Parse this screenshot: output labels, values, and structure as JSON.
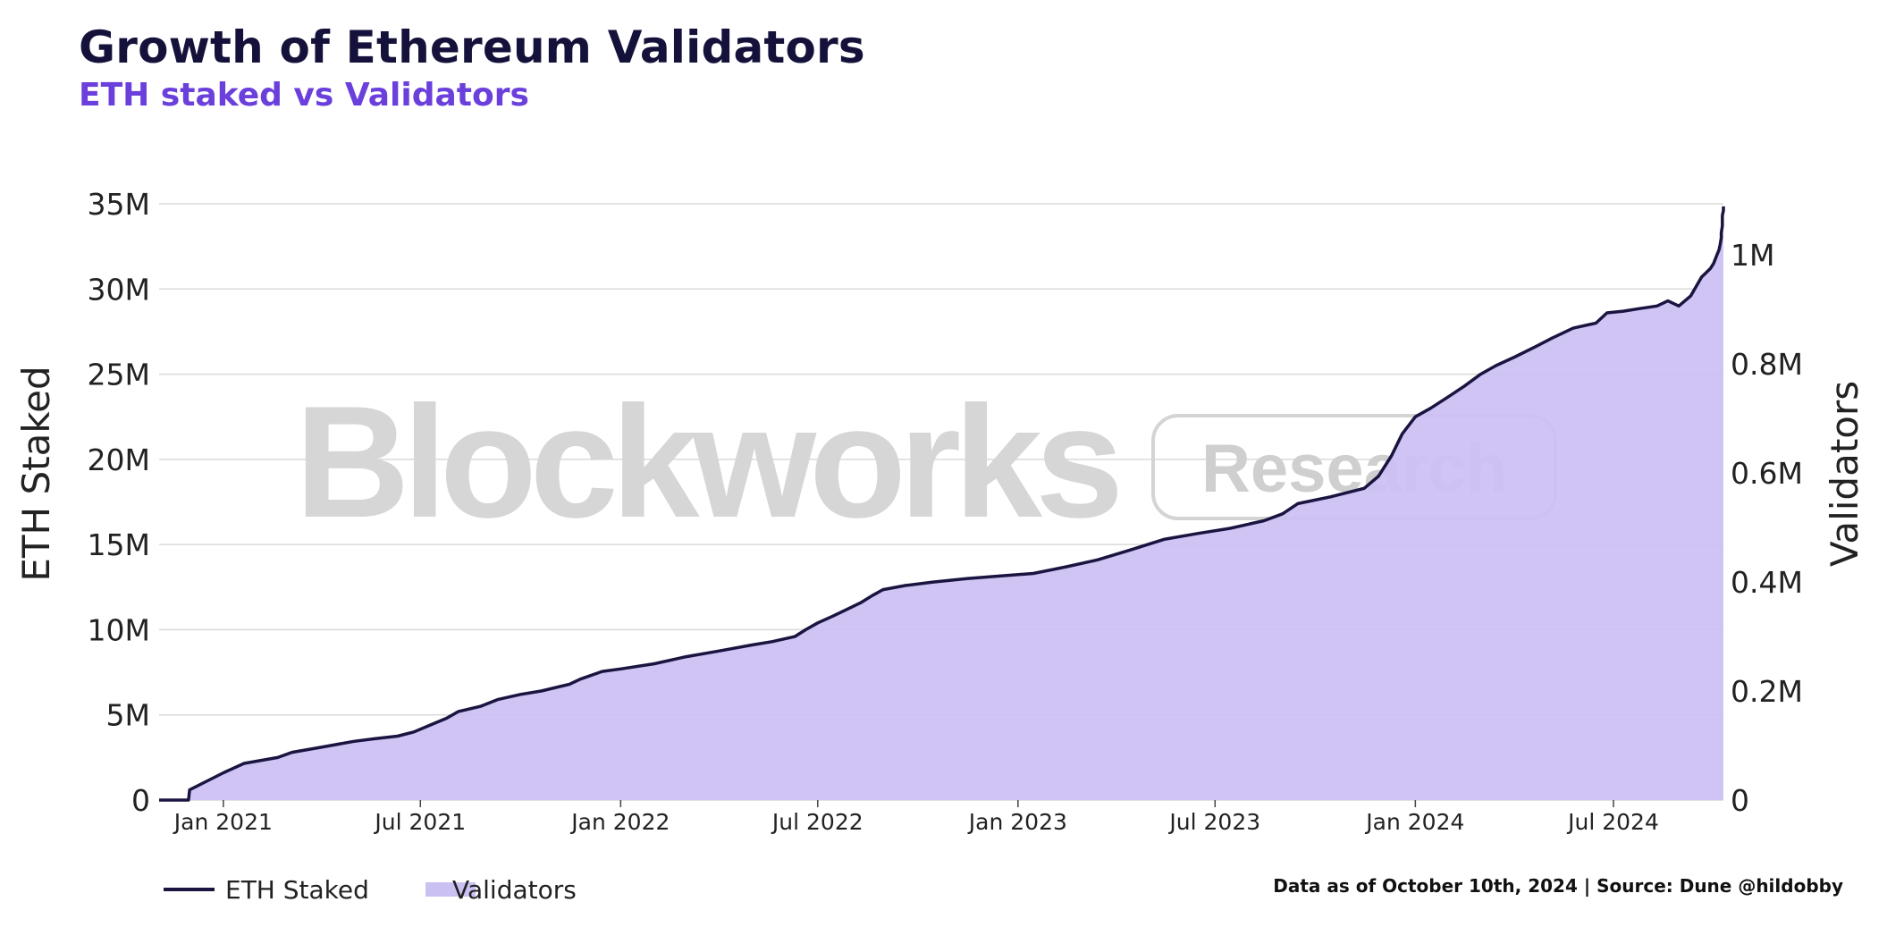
{
  "header": {
    "title": "Growth of Ethereum Validators",
    "subtitle": "ETH staked vs Validators"
  },
  "footer": {
    "source": "Data as of October 10th, 2024 | Source: Dune @hildobby"
  },
  "watermark": {
    "main": "Blockworks",
    "sub": "Research"
  },
  "colors": {
    "line": "#1a1540",
    "area": "#cbc0f2",
    "area_stroke": "#b9aaee",
    "grid": "#d9d9d9",
    "title": "#14123a",
    "subtitle": "#6a3fdc"
  },
  "chart_data": {
    "type": "area",
    "title": "Growth of Ethereum Validators",
    "subtitle": "ETH staked vs Validators",
    "y_left": {
      "label": "ETH Staked",
      "range": [
        0,
        35000000
      ],
      "ticks": [
        0,
        5000000,
        10000000,
        15000000,
        20000000,
        25000000,
        30000000,
        35000000
      ],
      "tick_labels": [
        "0",
        "5M",
        "10M",
        "15M",
        "20M",
        "25M",
        "30M",
        "35M"
      ]
    },
    "y_right": {
      "label": "Validators",
      "range": [
        0,
        1093750
      ],
      "ticks": [
        0,
        200000,
        400000,
        600000,
        800000,
        1000000
      ],
      "tick_labels": [
        "0",
        "0.2M",
        "0.4M",
        "0.6M",
        "0.8M",
        "1M"
      ]
    },
    "x_axis": {
      "range": [
        "2020-11-03",
        "2024-10-10"
      ],
      "ticks": [
        "2021-01-01",
        "2021-07-01",
        "2022-01-01",
        "2022-07-01",
        "2023-01-01",
        "2023-07-01",
        "2024-01-01",
        "2024-07-01"
      ],
      "tick_labels": [
        "Jan 2021",
        "Jul 2021",
        "Jan 2022",
        "Jul 2022",
        "Jan 2023",
        "Jul 2023",
        "Jan 2024",
        "Jul 2024"
      ]
    },
    "grid": true,
    "legend": "bottom-left",
    "series": [
      {
        "name": "ETH Staked",
        "axis": "left",
        "style": "line",
        "points": [
          [
            "2020-11-03",
            0
          ],
          [
            "2020-11-30",
            0
          ],
          [
            "2020-12-01",
            600000
          ],
          [
            "2020-12-15",
            1050000
          ],
          [
            "2021-01-01",
            1600000
          ],
          [
            "2021-01-20",
            2150000
          ],
          [
            "2021-02-20",
            2500000
          ],
          [
            "2021-03-05",
            2800000
          ],
          [
            "2021-04-01",
            3100000
          ],
          [
            "2021-05-01",
            3450000
          ],
          [
            "2021-05-20",
            3600000
          ],
          [
            "2021-06-10",
            3750000
          ],
          [
            "2021-06-25",
            4000000
          ],
          [
            "2021-07-10",
            4400000
          ],
          [
            "2021-07-25",
            4800000
          ],
          [
            "2021-08-05",
            5200000
          ],
          [
            "2021-08-25",
            5500000
          ],
          [
            "2021-09-10",
            5900000
          ],
          [
            "2021-10-01",
            6200000
          ],
          [
            "2021-10-20",
            6400000
          ],
          [
            "2021-11-15",
            6800000
          ],
          [
            "2021-11-25",
            7100000
          ],
          [
            "2021-12-15",
            7550000
          ],
          [
            "2022-01-01",
            7700000
          ],
          [
            "2022-02-01",
            8000000
          ],
          [
            "2022-03-01",
            8400000
          ],
          [
            "2022-04-01",
            8750000
          ],
          [
            "2022-05-01",
            9100000
          ],
          [
            "2022-05-20",
            9300000
          ],
          [
            "2022-06-10",
            9600000
          ],
          [
            "2022-06-20",
            10000000
          ],
          [
            "2022-07-01",
            10400000
          ],
          [
            "2022-07-15",
            10800000
          ],
          [
            "2022-07-28",
            11200000
          ],
          [
            "2022-08-10",
            11600000
          ],
          [
            "2022-08-20",
            12000000
          ],
          [
            "2022-08-30",
            12350000
          ],
          [
            "2022-09-20",
            12600000
          ],
          [
            "2022-10-15",
            12800000
          ],
          [
            "2022-11-15",
            13000000
          ],
          [
            "2022-12-15",
            13150000
          ],
          [
            "2023-01-15",
            13300000
          ],
          [
            "2023-02-15",
            13700000
          ],
          [
            "2023-03-15",
            14100000
          ],
          [
            "2023-04-15",
            14700000
          ],
          [
            "2023-05-15",
            15300000
          ],
          [
            "2023-06-15",
            15650000
          ],
          [
            "2023-07-15",
            15950000
          ],
          [
            "2023-08-15",
            16400000
          ],
          [
            "2023-09-01",
            16800000
          ],
          [
            "2023-09-15",
            17400000
          ],
          [
            "2023-10-15",
            17800000
          ],
          [
            "2023-11-15",
            18300000
          ],
          [
            "2023-11-28",
            19000000
          ],
          [
            "2023-12-10",
            20200000
          ],
          [
            "2023-12-20",
            21500000
          ],
          [
            "2024-01-01",
            22500000
          ],
          [
            "2024-01-15",
            23000000
          ],
          [
            "2024-02-01",
            23700000
          ],
          [
            "2024-02-15",
            24300000
          ],
          [
            "2024-03-01",
            25000000
          ],
          [
            "2024-03-15",
            25500000
          ],
          [
            "2024-04-01",
            26000000
          ],
          [
            "2024-04-20",
            26600000
          ],
          [
            "2024-05-05",
            27100000
          ],
          [
            "2024-05-25",
            27700000
          ],
          [
            "2024-06-15",
            28000000
          ],
          [
            "2024-06-25",
            28600000
          ],
          [
            "2024-07-10",
            28700000
          ],
          [
            "2024-07-25",
            28850000
          ],
          [
            "2024-08-10",
            29000000
          ],
          [
            "2024-08-20",
            29300000
          ],
          [
            "2024-08-30",
            29000000
          ],
          [
            "2024-09-10",
            29600000
          ],
          [
            "2024-09-20",
            30700000
          ],
          [
            "2024-09-28",
            31200000
          ],
          [
            "2024-10-01",
            31500000
          ],
          [
            "2024-10-04",
            32000000
          ],
          [
            "2024-10-06",
            32300000
          ],
          [
            "2024-10-07",
            32600000
          ],
          [
            "2024-10-08",
            33000000
          ],
          [
            "2024-10-08",
            33300000
          ],
          [
            "2024-10-09",
            33700000
          ],
          [
            "2024-10-09",
            34000000
          ],
          [
            "2024-10-09",
            34300000
          ],
          [
            "2024-10-10",
            34600000
          ],
          [
            "2024-10-10",
            34850000
          ]
        ]
      },
      {
        "name": "Validators",
        "axis": "right",
        "style": "area"
      }
    ]
  },
  "legend_items": [
    {
      "label": "ETH Staked"
    },
    {
      "label": "Validators"
    }
  ]
}
